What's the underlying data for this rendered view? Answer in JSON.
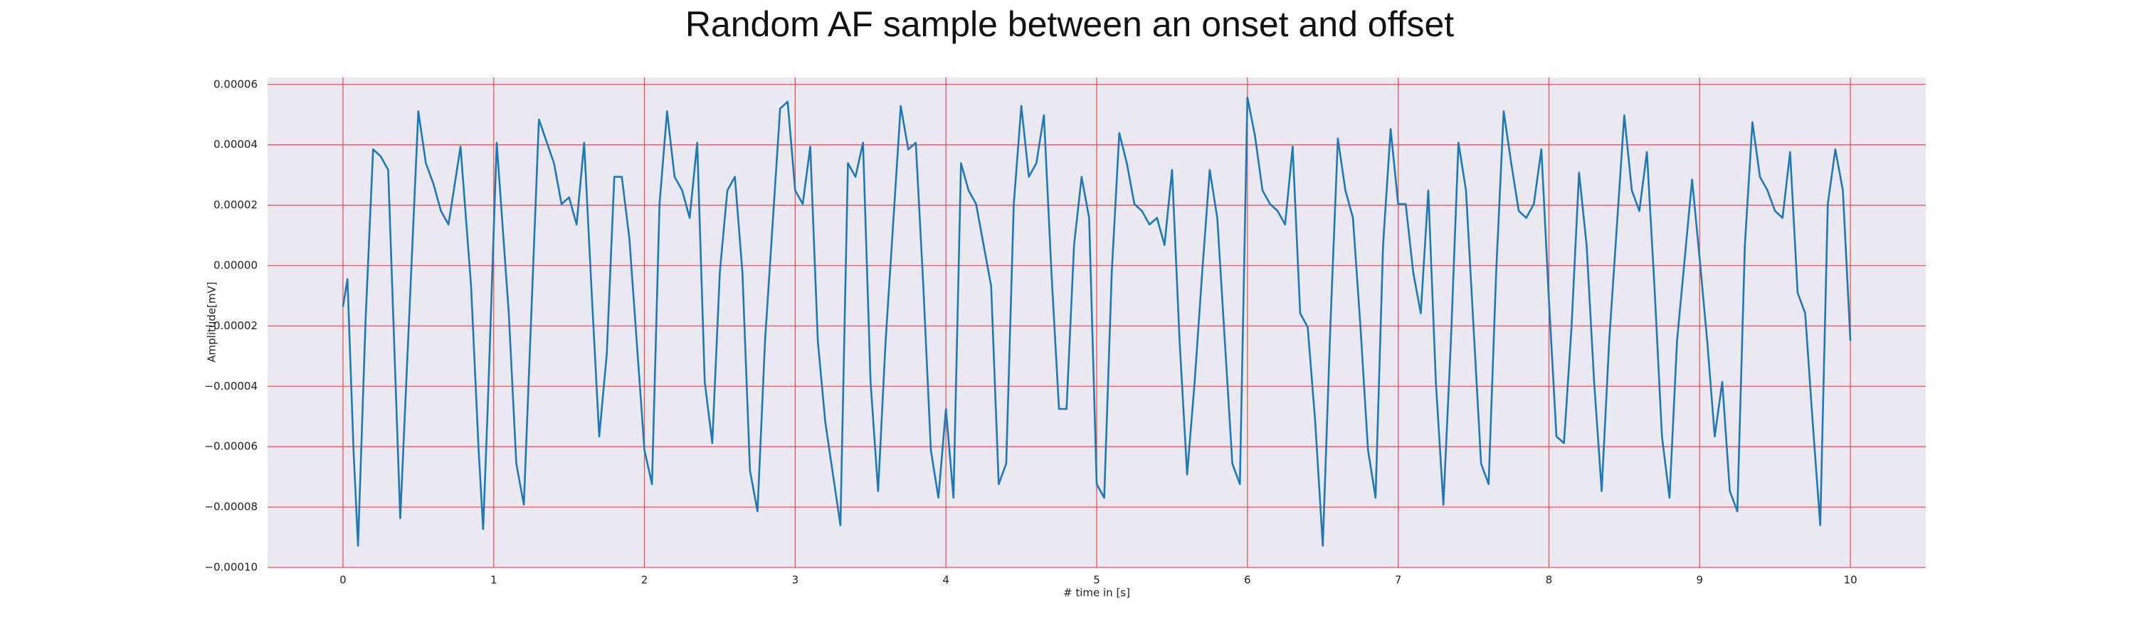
{
  "chart_data": {
    "type": "line",
    "title": "Random AF sample between an onset and offset",
    "xlabel": "# time in [s]",
    "ylabel": "Amplitude[mV]",
    "xlim": [
      -0.5,
      10.5
    ],
    "ylim": [
      -0.0001,
      6.23e-05
    ],
    "xticks": [
      0,
      1,
      2,
      3,
      4,
      5,
      6,
      7,
      8,
      9,
      10
    ],
    "yticks": [
      {
        "value": -0.0001,
        "label": "−0.00010"
      },
      {
        "value": -8e-05,
        "label": "−0.00008"
      },
      {
        "value": -6e-05,
        "label": "−0.00006"
      },
      {
        "value": -4e-05,
        "label": "−0.00004"
      },
      {
        "value": -2e-05,
        "label": "−0.00002"
      },
      {
        "value": 0,
        "label": "0.00000"
      },
      {
        "value": 2e-05,
        "label": "0.00002"
      },
      {
        "value": 4e-05,
        "label": "0.00004"
      },
      {
        "value": 6e-05,
        "label": "0.00006"
      }
    ],
    "grid": true,
    "grid_color": "#f05050",
    "background": "#eae9f2",
    "series": [
      {
        "color": "#1f77b4",
        "x": [
          0,
          0.03,
          0.07,
          0.1,
          0.15,
          0.2,
          0.25,
          0.3,
          0.38,
          0.5,
          0.55,
          0.6,
          0.65,
          0.7,
          0.78,
          0.85,
          0.9,
          0.93,
          0.96,
          1.02,
          1.1,
          1.15,
          1.2,
          1.3,
          1.4,
          1.45,
          1.5,
          1.55,
          1.6,
          1.65,
          1.7,
          1.75,
          1.8,
          1.85,
          1.9,
          2.0,
          2.05,
          2.1,
          2.15,
          2.2,
          2.25,
          2.3,
          2.35,
          2.4,
          2.45,
          2.5,
          2.55,
          2.6,
          2.65,
          2.7,
          2.75,
          2.8,
          2.9,
          2.95,
          3.0,
          3.05,
          3.1,
          3.15,
          3.2,
          3.3,
          3.35,
          3.4,
          3.45,
          3.5,
          3.55,
          3.6,
          3.7,
          3.75,
          3.8,
          3.85,
          3.9,
          3.95,
          4.0,
          4.05,
          4.1,
          4.15,
          4.2,
          4.3,
          4.35,
          4.4,
          4.45,
          4.5,
          4.55,
          4.6,
          4.65,
          4.7,
          4.75,
          4.8,
          4.85,
          4.9,
          4.95,
          5.0,
          5.05,
          5.1,
          5.15,
          5.2,
          5.25,
          5.3,
          5.35,
          5.4,
          5.45,
          5.5,
          5.55,
          5.6,
          5.65,
          5.7,
          5.75,
          5.8,
          5.85,
          5.9,
          5.95,
          6.0,
          6.05,
          6.1,
          6.15,
          6.2,
          6.25,
          6.3,
          6.35,
          6.4,
          6.45,
          6.5,
          6.55,
          6.6,
          6.65,
          6.7,
          6.75,
          6.8,
          6.85,
          6.9,
          6.95,
          7.0,
          7.05,
          7.1,
          7.15,
          7.2,
          7.25,
          7.3,
          7.35,
          7.4,
          7.45,
          7.5,
          7.55,
          7.6,
          7.65,
          7.7,
          7.75,
          7.8,
          7.85,
          7.9,
          7.95,
          8.0,
          8.05,
          8.1,
          8.15,
          8.2,
          8.25,
          8.3,
          8.35,
          8.4,
          8.5,
          8.55,
          8.6,
          8.65,
          8.7,
          8.75,
          8.8,
          8.85,
          8.95,
          9.0,
          9.05,
          9.1,
          9.15,
          9.2,
          9.25,
          9.3,
          9.35,
          9.4,
          9.45,
          9.5,
          9.55,
          9.6,
          9.65,
          9.7,
          9.75,
          9.8,
          9.85,
          9.9,
          9.95,
          10.0
        ],
        "values": [
          -1.36e-05,
          -4.5e-06,
          -6.11e-05,
          -9.28e-05,
          -1.81e-05,
          3.85e-05,
          3.62e-05,
          3.17e-05,
          -8.37e-05,
          5.11e-05,
          3.39e-05,
          2.71e-05,
          1.81e-05,
          1.36e-05,
          3.94e-05,
          -6.8e-06,
          -6.11e-05,
          -8.73e-05,
          -4.75e-05,
          4.07e-05,
          -1.58e-05,
          -6.56e-05,
          -7.92e-05,
          4.84e-05,
          3.39e-05,
          2.04e-05,
          2.26e-05,
          1.36e-05,
          4.07e-05,
          -9e-06,
          -5.66e-05,
          -2.94e-05,
          2.94e-05,
          2.94e-05,
          9e-06,
          -6.11e-05,
          -7.24e-05,
          2.04e-05,
          5.11e-05,
          2.94e-05,
          2.49e-05,
          1.58e-05,
          4.07e-05,
          -3.85e-05,
          -5.88e-05,
          -2.3e-06,
          2.49e-05,
          2.94e-05,
          -2.3e-06,
          -6.79e-05,
          -8.14e-05,
          -2.49e-05,
          5.2e-05,
          5.43e-05,
          2.49e-05,
          2.04e-05,
          3.94e-05,
          -2.49e-05,
          -5.2e-05,
          -8.6e-05,
          3.39e-05,
          2.94e-05,
          4.07e-05,
          -3.85e-05,
          -7.47e-05,
          -2.49e-05,
          5.29e-05,
          3.85e-05,
          4.07e-05,
          -6.8e-06,
          -6.11e-05,
          -7.69e-05,
          -4.75e-05,
          -7.69e-05,
          3.39e-05,
          2.49e-05,
          2.04e-05,
          -6.8e-06,
          -7.24e-05,
          -6.56e-05,
          2.04e-05,
          5.29e-05,
          2.94e-05,
          3.39e-05,
          4.98e-05,
          -2.3e-06,
          -4.75e-05,
          -4.75e-05,
          6.8e-06,
          2.94e-05,
          1.58e-05,
          -7.24e-05,
          -7.69e-05,
          -2.3e-06,
          4.39e-05,
          3.39e-05,
          2.04e-05,
          1.81e-05,
          1.36e-05,
          1.58e-05,
          6.8e-06,
          3.17e-05,
          -2.49e-05,
          -6.92e-05,
          -3.85e-05,
          -2.3e-06,
          3.17e-05,
          1.58e-05,
          -2.49e-05,
          -6.56e-05,
          -7.24e-05,
          5.57e-05,
          4.3e-05,
          2.49e-05,
          2.04e-05,
          1.81e-05,
          1.36e-05,
          3.94e-05,
          -1.58e-05,
          -2.04e-05,
          -5.2e-05,
          -9.28e-05,
          -2.04e-05,
          4.21e-05,
          2.49e-05,
          1.58e-05,
          -2.04e-05,
          -6.11e-05,
          -7.69e-05,
          6.8e-06,
          4.52e-05,
          2.04e-05,
          2.04e-05,
          -2.3e-06,
          -1.58e-05,
          2.49e-05,
          -3.85e-05,
          -7.92e-05,
          -2.49e-05,
          4.07e-05,
          2.49e-05,
          -2.04e-05,
          -6.56e-05,
          -7.24e-05,
          -2.3e-06,
          5.11e-05,
          3.39e-05,
          1.81e-05,
          1.58e-05,
          2.04e-05,
          3.85e-05,
          -1.13e-05,
          -5.66e-05,
          -5.88e-05,
          -2.04e-05,
          3.08e-05,
          6.8e-06,
          -3.85e-05,
          -7.47e-05,
          -2.49e-05,
          4.98e-05,
          2.49e-05,
          1.81e-05,
          3.76e-05,
          -6.8e-06,
          -5.66e-05,
          -7.69e-05,
          -2.49e-05,
          2.85e-05,
          2.3e-06,
          -2.49e-05,
          -5.66e-05,
          -3.85e-05,
          -7.47e-05,
          -8.14e-05,
          6.8e-06,
          4.75e-05,
          2.94e-05,
          2.49e-05,
          1.81e-05,
          1.58e-05,
          3.76e-05,
          -9e-06,
          -1.58e-05,
          -5.2e-05,
          -8.6e-05,
          2.04e-05,
          3.85e-05,
          2.49e-05,
          -2.49e-05
        ]
      }
    ]
  }
}
